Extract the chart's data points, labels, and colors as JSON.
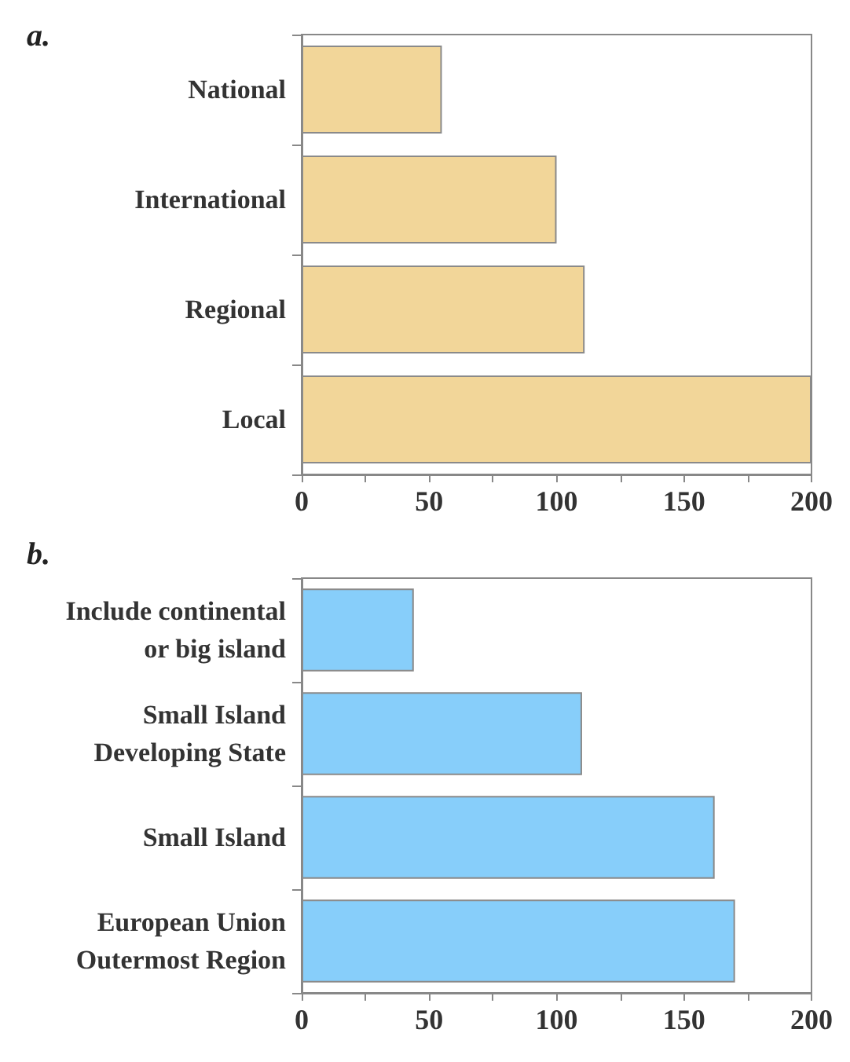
{
  "chart_data": [
    {
      "type": "bar",
      "title": "a.",
      "orientation": "horizontal",
      "categories": [
        "National",
        "International",
        "Regional",
        "Local"
      ],
      "values": [
        55,
        100,
        111,
        200
      ],
      "color": "#f2d699",
      "xlim": [
        0,
        200
      ],
      "xticks": [
        0,
        {
          "value": 25,
          "label": null
        },
        50,
        {
          "value": 75,
          "label": null
        },
        100,
        {
          "value": 125,
          "label": null
        },
        150,
        {
          "value": 175,
          "label": null
        },
        200
      ]
    },
    {
      "type": "bar",
      "title": "b.",
      "orientation": "horizontal",
      "categories": [
        "Include continental\nor big island",
        "Small Island\nDeveloping State",
        "Small Island",
        "European Union\nOutermost Region"
      ],
      "values": [
        44,
        110,
        162,
        170
      ],
      "color": "#87cefa",
      "xlim": [
        0,
        200
      ],
      "xticks": [
        0,
        {
          "value": 25,
          "label": null
        },
        50,
        {
          "value": 75,
          "label": null
        },
        100,
        {
          "value": 125,
          "label": null
        },
        150,
        {
          "value": 175,
          "label": null
        },
        200
      ]
    }
  ]
}
